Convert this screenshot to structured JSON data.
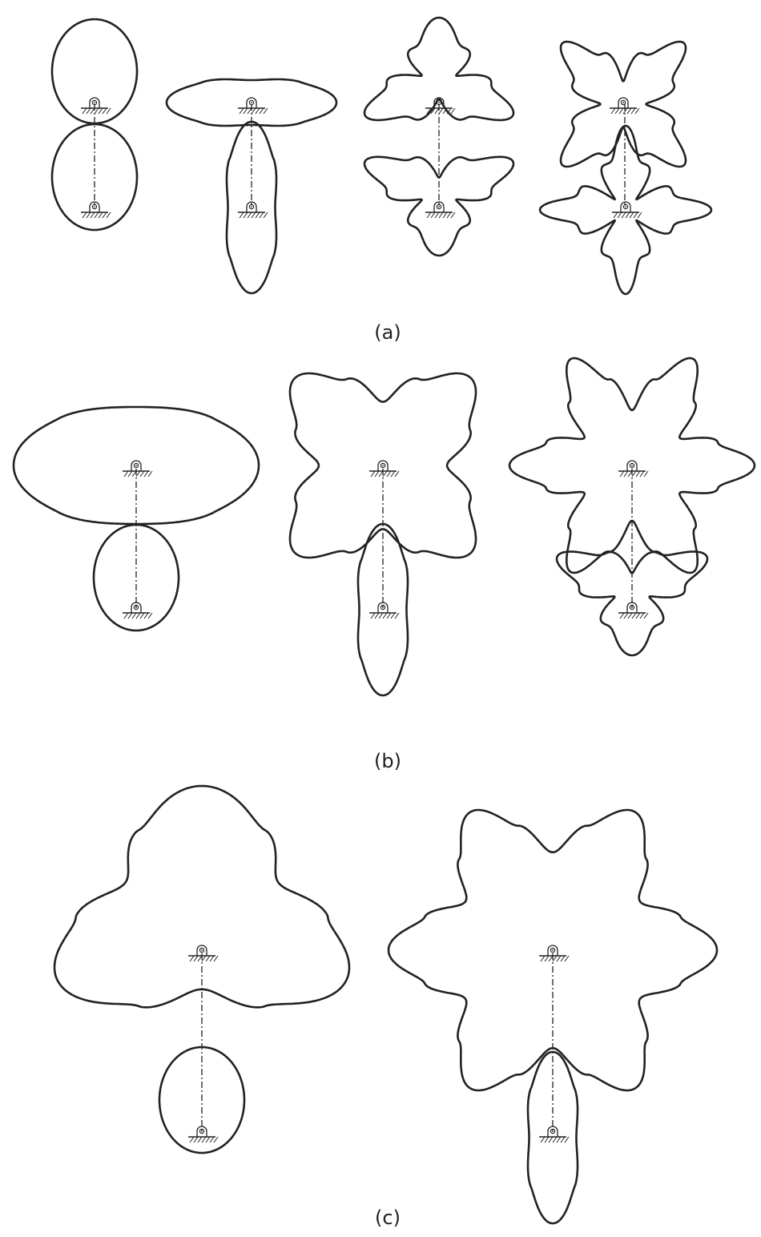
{
  "figure": {
    "line_color": "#222222",
    "background": "#ffffff",
    "groups": [
      {
        "label": "(a)"
      },
      {
        "label": "(b)"
      },
      {
        "label": "(c)"
      }
    ]
  }
}
